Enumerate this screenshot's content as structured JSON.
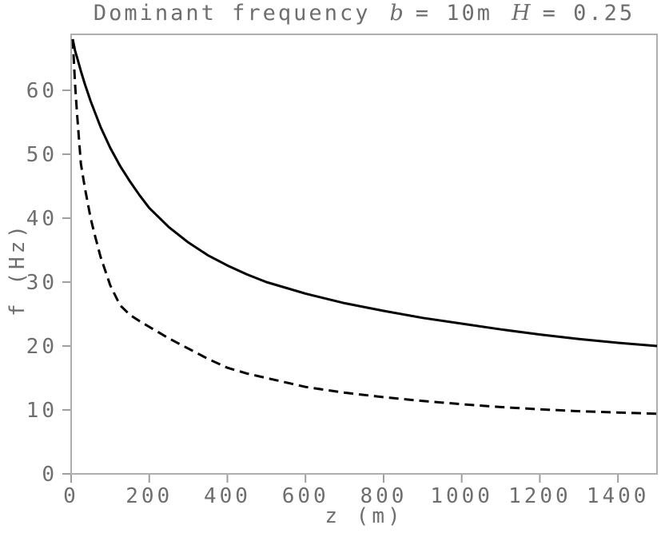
{
  "title": {
    "segments": [
      {
        "text": "Dominant frequency",
        "italic": false
      },
      {
        "text": "b",
        "italic": true
      },
      {
        "text": "= 10m",
        "italic": false
      },
      {
        "text": "H",
        "italic": true
      },
      {
        "text": "= 0.25",
        "italic": false
      }
    ],
    "full_text": "Dominant frequency  b = 10m  H = 0.25"
  },
  "colors": {
    "background": "#ffffff",
    "axis_line": "#aeaeae",
    "tick_mark": "#9e9e9e",
    "label_text": "#6e6e6e",
    "curve": "#000000"
  },
  "chart_data": {
    "type": "line",
    "title": "Dominant frequency  b = 10m  H = 0.25",
    "xlabel": "z (m)",
    "ylabel": "f (Hz)",
    "xlim": [
      0,
      1500
    ],
    "ylim": [
      0,
      68.75
    ],
    "x_ticks": [
      0,
      200,
      400,
      600,
      800,
      1000,
      1200,
      1400
    ],
    "y_ticks": [
      0,
      10,
      20,
      30,
      40,
      50,
      60
    ],
    "grid": false,
    "legend_position": "none",
    "series": [
      {
        "name": "solid-curve",
        "style": "solid",
        "points": [
          [
            4,
            68.0
          ],
          [
            10,
            66.2
          ],
          [
            15,
            65.2
          ],
          [
            25,
            63.0
          ],
          [
            35,
            61.0
          ],
          [
            50,
            58.3
          ],
          [
            60,
            56.7
          ],
          [
            75,
            54.3
          ],
          [
            100,
            51.0
          ],
          [
            125,
            48.2
          ],
          [
            150,
            45.8
          ],
          [
            175,
            43.6
          ],
          [
            200,
            41.6
          ],
          [
            250,
            38.6
          ],
          [
            300,
            36.2
          ],
          [
            350,
            34.2
          ],
          [
            400,
            32.6
          ],
          [
            450,
            31.2
          ],
          [
            500,
            30.0
          ],
          [
            600,
            28.2
          ],
          [
            700,
            26.7
          ],
          [
            800,
            25.5
          ],
          [
            900,
            24.4
          ],
          [
            1000,
            23.5
          ],
          [
            1100,
            22.6
          ],
          [
            1200,
            21.8
          ],
          [
            1300,
            21.1
          ],
          [
            1400,
            20.5
          ],
          [
            1500,
            20.0
          ]
        ]
      },
      {
        "name": "dashed-curve",
        "style": "dashed",
        "points": [
          [
            4,
            68.0
          ],
          [
            10,
            61.0
          ],
          [
            15,
            56.5
          ],
          [
            25,
            48.5
          ],
          [
            35,
            44.8
          ],
          [
            50,
            40.0
          ],
          [
            60,
            37.5
          ],
          [
            75,
            34.0
          ],
          [
            100,
            29.5
          ],
          [
            125,
            26.4
          ],
          [
            150,
            24.9
          ],
          [
            175,
            23.9
          ],
          [
            200,
            23.0
          ],
          [
            250,
            21.2
          ],
          [
            300,
            19.6
          ],
          [
            350,
            18.0
          ],
          [
            400,
            16.6
          ],
          [
            450,
            15.7
          ],
          [
            500,
            15.0
          ],
          [
            600,
            13.6
          ],
          [
            700,
            12.7
          ],
          [
            800,
            12.0
          ],
          [
            900,
            11.4
          ],
          [
            1000,
            10.9
          ],
          [
            1100,
            10.45
          ],
          [
            1200,
            10.1
          ],
          [
            1300,
            9.8
          ],
          [
            1400,
            9.6
          ],
          [
            1500,
            9.4
          ]
        ]
      }
    ]
  }
}
